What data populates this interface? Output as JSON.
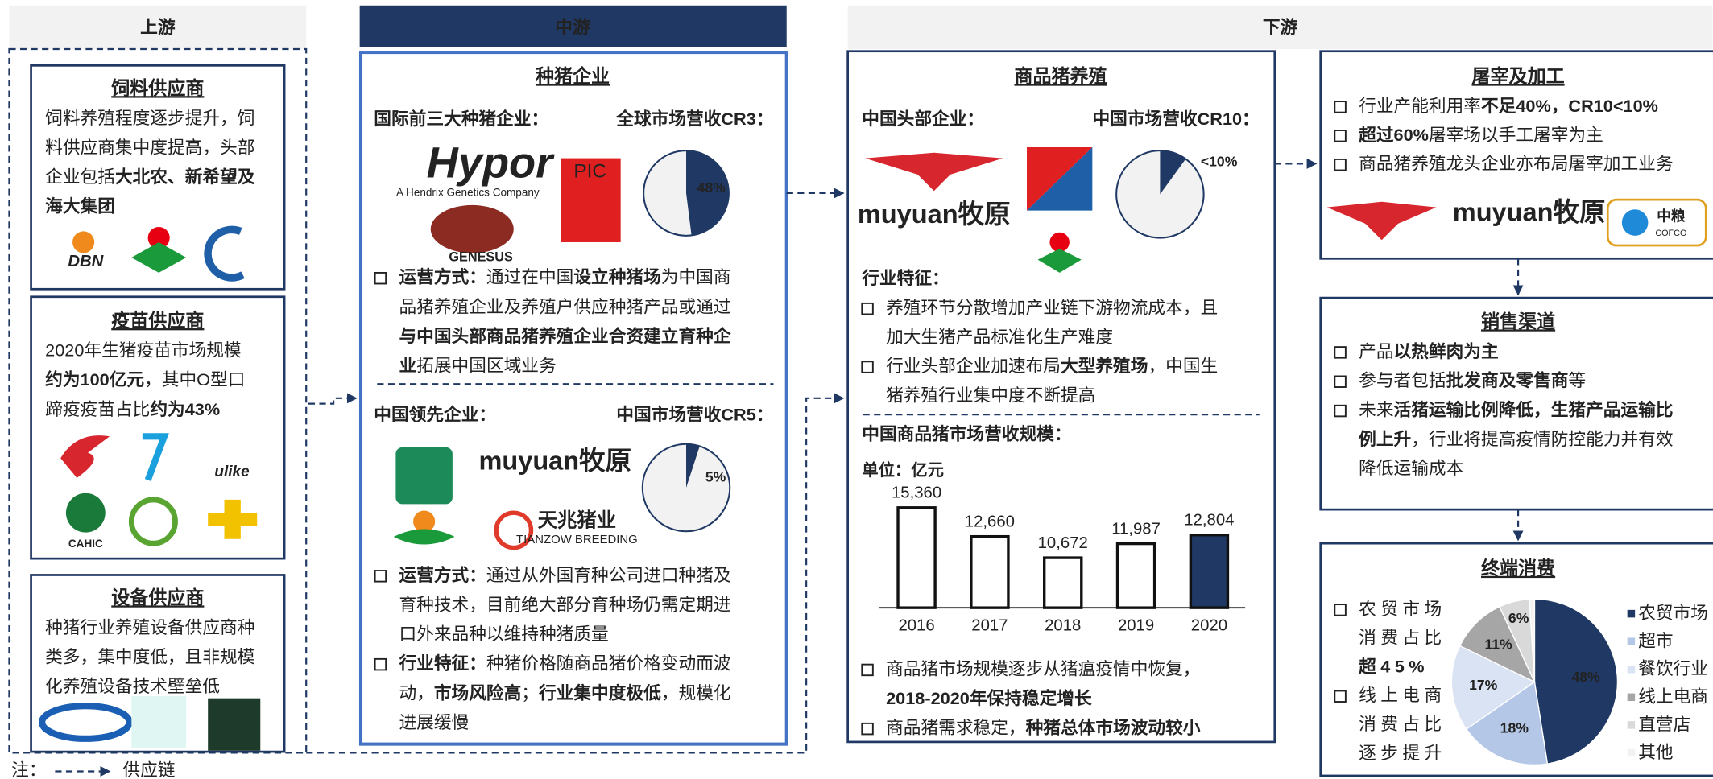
{
  "upstream": {
    "header": "上游",
    "boxes": [
      {
        "title": "饲料供应商",
        "lines": [
          [
            "饲料养殖程度逐步提升，饲"
          ],
          [
            "料供应商集中度提高，头部"
          ],
          [
            "企业包括",
            {
              "bold": "大北农、新希望及"
            }
          ],
          [
            {
              "bold": "海大集团"
            }
          ]
        ],
        "logos": [
          "DBN"
        ]
      },
      {
        "title": "疫苗供应商",
        "lines": [
          [
            "2020年生猪疫苗市场规模"
          ],
          [
            {
              "bold": "约为100亿元"
            },
            "，其中O型口"
          ],
          [
            "蹄疫疫苗占比",
            {
              "bold": "约为43%"
            }
          ]
        ],
        "logos": [
          "ulike",
          "CAHIC"
        ]
      },
      {
        "title": "设备供应商",
        "lines": [
          [
            "种猪行业养殖设备供应商种"
          ],
          [
            "类多，集中度低，且非规模"
          ],
          [
            "化养殖设备技术壁垒低"
          ]
        ]
      }
    ]
  },
  "midstream": {
    "header": "中游",
    "title": "种猪企业",
    "sections": [
      {
        "label": "国际前三大种猪企业：",
        "metric": "全球市场营收CR3：",
        "pie": {
          "type": "pie",
          "values": [
            48
          ],
          "value_labels": [
            "48%"
          ],
          "color": "#1f3864"
        },
        "logos": [
          "Hypor",
          "A Hendrix Genetics Company",
          "PIC",
          "GENESUS"
        ],
        "bullets": [
          [
            [
              {
                "bold": "运营方式："
              },
              "通过在中国",
              {
                "bold": "设立种猪场"
              },
              "为中国商"
            ],
            [
              "品猪养殖企业及养殖户供应种猪产品或通过"
            ],
            [
              {
                "bold": "与中国头部商品猪养殖企业合资建立育种企"
              }
            ],
            [
              {
                "bold": "业"
              },
              "拓展中国区域业务"
            ]
          ]
        ]
      },
      {
        "label": "中国领先企业：",
        "metric": "中国市场营收CR5：",
        "pie": {
          "type": "pie",
          "values": [
            5
          ],
          "value_labels": [
            "5%"
          ],
          "color": "#1f3864"
        },
        "logos": [
          "muyuan牧原",
          "天兆猪业",
          "TIANZOW BREEDING"
        ],
        "bullets": [
          [
            [
              {
                "bold": "运营方式："
              },
              "通过从外国育种公司进口种猪及"
            ],
            [
              "育种技术，目前绝大部分育种场仍需定期进"
            ],
            [
              "口外来品种以维持种猪质量"
            ]
          ],
          [
            [
              {
                "bold": "行业特征："
              },
              "种猪价格随商品猪价格变动而波"
            ],
            [
              "动，",
              {
                "bold": "市场风险高"
              },
              "；",
              {
                "bold": "行业集中度极低"
              },
              "，规模化"
            ],
            [
              "进展缓慢"
            ]
          ]
        ]
      }
    ]
  },
  "downstream": {
    "header": "下游",
    "farming": {
      "title": "商品猪养殖",
      "label": "中国头部企业：",
      "metric": "中国市场营收CR10：",
      "pie": {
        "type": "pie",
        "values": [
          10
        ],
        "value_labels": [
          "<10%"
        ],
        "color": "#1f3864"
      },
      "logos": [
        "muyuan牧原"
      ],
      "features_title": "行业特征：",
      "features": [
        [
          [
            "养殖环节分散增加产业链下游物流成本，且"
          ],
          [
            "加大生猪产品标准化生产难度"
          ]
        ],
        [
          [
            "行业头部企业加速布局",
            {
              "bold": "大型养殖场"
            },
            "，中国生"
          ],
          [
            "猪养殖行业集中度不断提高"
          ]
        ]
      ],
      "market_title": "中国商品猪市场营收规模：",
      "unit": "单位：亿元",
      "chart": {
        "type": "bar",
        "categories": [
          "2016",
          "2017",
          "2018",
          "2019",
          "2020"
        ],
        "values": [
          15360,
          12660,
          10672,
          11987,
          12804
        ],
        "value_labels": [
          "15,360",
          "12,660",
          "10,672",
          "11,987",
          "12,804"
        ],
        "colors": [
          "#ffffff",
          "#ffffff",
          "#ffffff",
          "#ffffff",
          "#1f3864"
        ],
        "ylim": [
          6000,
          16000
        ]
      },
      "bullets": [
        [
          [
            "商品猪市场规模逐步从猪瘟疫情中恢复，"
          ],
          [
            {
              "bold": "2018-2020年保持稳定增长"
            }
          ]
        ],
        [
          [
            "商品猪需求稳定，",
            {
              "bold": "种猪总体市场波动较小"
            }
          ]
        ]
      ]
    },
    "slaughter": {
      "title": "屠宰及加工",
      "bullets": [
        [
          [
            "行业产能利用率",
            {
              "bold": "不足40%，CR10<10%"
            }
          ]
        ],
        [
          [
            {
              "bold": "超过60%"
            },
            "屠宰场以手工屠宰为主"
          ]
        ],
        [
          [
            "商品猪养殖龙头企业亦布局屠宰加工业务"
          ]
        ]
      ],
      "logos": [
        "muyuan牧原",
        "中粮",
        "COFCO"
      ]
    },
    "sales": {
      "title": "销售渠道",
      "bullets": [
        [
          [
            "产品",
            {
              "bold": "以热鲜肉为主"
            }
          ]
        ],
        [
          [
            "参与者包括",
            {
              "bold": "批发商及零售商"
            },
            "等"
          ]
        ],
        [
          [
            "未来",
            {
              "bold": "活猪运输比例降低，生猪产品运输比"
            }
          ],
          [
            {
              "bold": "例上升"
            },
            "，行业将提高疫情防控能力并有效"
          ],
          [
            "降低运输成本"
          ]
        ]
      ]
    },
    "consumption": {
      "title": "终端消费",
      "bullets": [
        [
          [
            "农贸市场"
          ],
          [
            "消费占比"
          ],
          [
            {
              "bold": "超45%"
            }
          ]
        ],
        [
          [
            "线上电商"
          ],
          [
            "消费占比"
          ],
          [
            "逐步提升"
          ]
        ]
      ],
      "chart": {
        "type": "pie",
        "categories": [
          "农贸市场",
          "超市",
          "餐饮行业",
          "线上电商",
          "直营店",
          "其他"
        ],
        "values": [
          48,
          18,
          17,
          11,
          6,
          1
        ],
        "value_labels": [
          "48%",
          "18%",
          "17%",
          "11%",
          "6%",
          null
        ],
        "colors": [
          "#1f3864",
          "#b4c7e7",
          "#dae3f3",
          "#a6a6a6",
          "#d9d9d9",
          "#f2f2f2"
        ]
      }
    }
  },
  "note": {
    "label": "注：",
    "legend": "供应链"
  }
}
